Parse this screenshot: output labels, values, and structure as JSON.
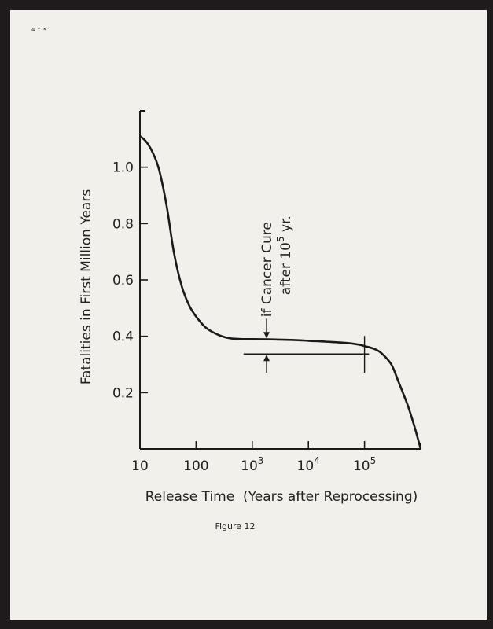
{
  "header_mark": "4 ↑ ↖",
  "figure_caption": "Figure 12",
  "chart_data": {
    "type": "line",
    "xscale": "log",
    "xlim": [
      10,
      1000000
    ],
    "ylim": [
      0,
      1.2
    ],
    "xlabel": "Release Time  (Years after Reprocessing)",
    "ylabel": "Fatalities in First Million Years",
    "x_ticks": [
      {
        "value": 10,
        "label": "10"
      },
      {
        "value": 100,
        "label": "100"
      },
      {
        "value": 1000,
        "base": "10",
        "exp": "3"
      },
      {
        "value": 10000,
        "base": "10",
        "exp": "4"
      },
      {
        "value": 100000,
        "base": "10",
        "exp": "5"
      }
    ],
    "y_ticks": [
      {
        "value": 0.2,
        "label": "0.2"
      },
      {
        "value": 0.4,
        "label": "0.4"
      },
      {
        "value": 0.6,
        "label": "0.6"
      },
      {
        "value": 0.8,
        "label": "0.8"
      },
      {
        "value": 1.0,
        "label": "1.0"
      }
    ],
    "series": [
      {
        "x": [
          10,
          13,
          17,
          22,
          30,
          40,
          55,
          75,
          100,
          150,
          250,
          400,
          700,
          1000,
          2000,
          5000,
          10000,
          20000,
          50000,
          80000,
          100000,
          150000,
          200000,
          300000,
          400000,
          600000,
          800000,
          1000000
        ],
        "y": [
          1.11,
          1.09,
          1.05,
          0.99,
          0.86,
          0.7,
          0.58,
          0.51,
          0.47,
          0.43,
          0.405,
          0.393,
          0.39,
          0.39,
          0.389,
          0.387,
          0.384,
          0.381,
          0.376,
          0.37,
          0.365,
          0.355,
          0.34,
          0.3,
          0.24,
          0.15,
          0.07,
          0.0
        ]
      }
    ],
    "annotation": {
      "line1": "if Cancer Cure",
      "line2_pre": "after 10",
      "line2_exp": "5",
      "line2_post": " yr.",
      "x": 1800,
      "y_top": 0.39,
      "y_bottom": 0.337
    },
    "reference_line": {
      "y": 0.337,
      "x_from": 700,
      "x_to": 120000
    },
    "marker_x": 100000
  }
}
